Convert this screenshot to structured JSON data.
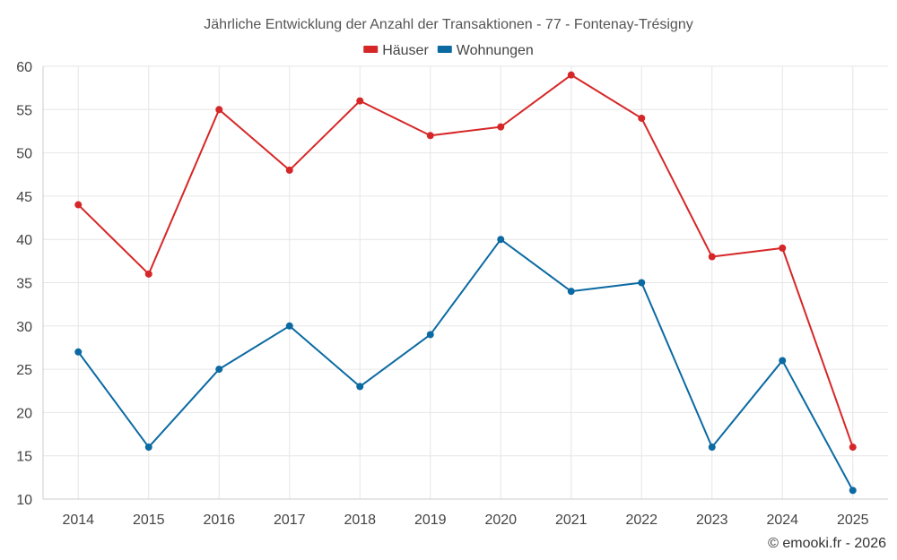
{
  "chart_data": {
    "type": "line",
    "title": "Jährliche Entwicklung der Anzahl der Transaktionen - 77 - Fontenay-Trésigny",
    "xlabel": "",
    "ylabel": "",
    "categories": [
      "2014",
      "2015",
      "2016",
      "2017",
      "2018",
      "2019",
      "2020",
      "2021",
      "2022",
      "2023",
      "2024",
      "2025"
    ],
    "ylim": [
      10,
      60
    ],
    "yticks": [
      10,
      15,
      20,
      25,
      30,
      35,
      40,
      45,
      50,
      55,
      60
    ],
    "grid": true,
    "legend_position": "top-center",
    "series": [
      {
        "name": "Häuser",
        "color": "#d62728",
        "values": [
          44,
          36,
          55,
          48,
          56,
          52,
          53,
          59,
          54,
          38,
          39,
          16
        ]
      },
      {
        "name": "Wohnungen",
        "color": "#0b6aa2",
        "values": [
          27,
          16,
          25,
          30,
          23,
          29,
          40,
          34,
          35,
          16,
          26,
          11
        ]
      }
    ]
  },
  "credit": "© emooki.fr - 2026"
}
